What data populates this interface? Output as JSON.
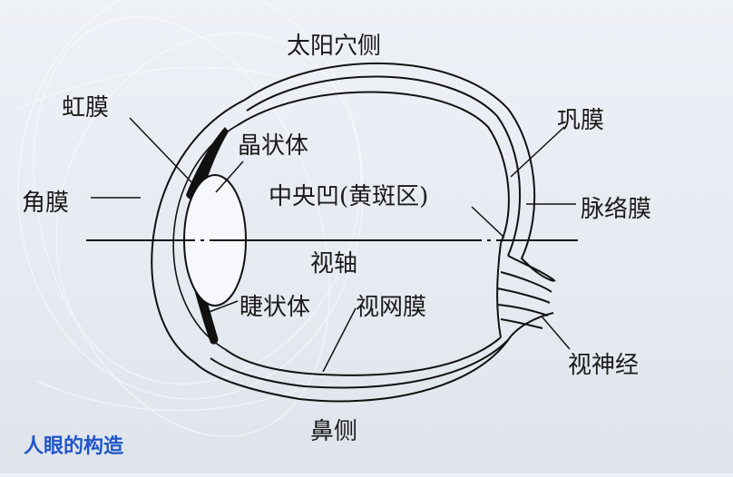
{
  "diagram": {
    "labels": {
      "temporal_side": "太阳穴侧",
      "iris": "虹膜",
      "lens": "晶状体",
      "sclera": "巩膜",
      "cornea": "角膜",
      "fovea": "中央凹(黄斑区)",
      "choroid": "脉络膜",
      "visual_axis": "视轴",
      "ciliary_body": "睫状体",
      "retina": "视网膜",
      "optic_nerve": "视神经",
      "nasal_side": "鼻侧"
    },
    "caption": "人眼的构造"
  }
}
